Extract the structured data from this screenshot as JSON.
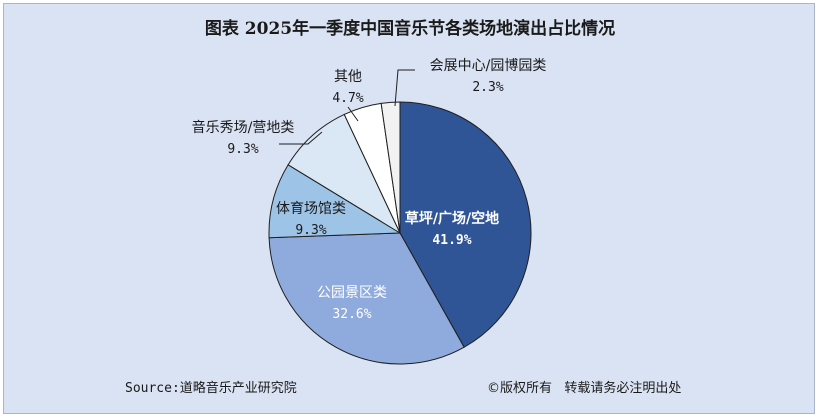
{
  "chart_data": {
    "type": "pie",
    "title": "图表  2025年一季度中国音乐节各类场地演出占比情况",
    "slices": [
      {
        "label": "草坪/广场/空地",
        "value": 41.9,
        "value_label": "41.9%",
        "color": "#2f5597"
      },
      {
        "label": "公园景区类",
        "value": 32.6,
        "value_label": "32.6%",
        "color": "#8faadc"
      },
      {
        "label": "体育场馆类",
        "value": 9.3,
        "value_label": "9.3%",
        "color": "#9dc3e6"
      },
      {
        "label": "音乐秀场/营地类",
        "value": 9.3,
        "value_label": "9.3%",
        "color": "#dae8f6"
      },
      {
        "label": "其他",
        "value": 4.7,
        "value_label": "4.7%",
        "color": "#ffffff"
      },
      {
        "label": "会展中心/园博园类",
        "value": 2.3,
        "value_label": "2.3%",
        "color": "#f2f2f2"
      }
    ],
    "start_angle": "12 o'clock",
    "direction": "clockwise",
    "legend": "none"
  },
  "footer": {
    "source": "Source:道略音乐产业研究院",
    "copyright": "©版权所有   转载请务必注明出处"
  }
}
